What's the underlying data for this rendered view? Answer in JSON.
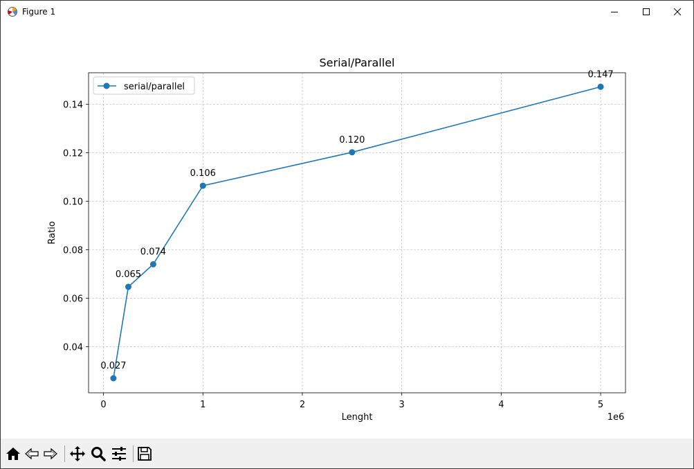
{
  "window": {
    "title": "Figure 1"
  },
  "colors": {
    "line": "#1f77b4",
    "grid": "#b0b0b0",
    "toolbar_bg": "#f0f0f0"
  },
  "toolbar": {
    "icons": [
      "home-icon",
      "back-arrow-icon",
      "forward-arrow-icon",
      "pan-icon",
      "zoom-icon",
      "configure-subplots-icon",
      "save-icon"
    ]
  },
  "chart_data": {
    "type": "line",
    "title": "Serial/Parallel",
    "xlabel": "Lenght",
    "ylabel": "Ratio",
    "x_offset_label": "1e6",
    "xlim": [
      -0.15,
      5.25
    ],
    "ylim": [
      0.021,
      0.153
    ],
    "x_ticks": [
      0,
      1,
      2,
      3,
      4,
      5
    ],
    "y_ticks": [
      0.04,
      0.06,
      0.08,
      0.1,
      0.12,
      0.14
    ],
    "x_tick_labels": [
      "0",
      "1",
      "2",
      "3",
      "4",
      "5"
    ],
    "y_tick_labels": [
      "0.04",
      "0.06",
      "0.08",
      "0.10",
      "0.12",
      "0.14"
    ],
    "grid": true,
    "legend_position": "upper-left",
    "series": [
      {
        "name": "serial/parallel",
        "marker": "circle",
        "x": [
          0.1,
          0.25,
          0.5,
          1.0,
          2.5,
          5.0
        ],
        "y": [
          0.027,
          0.0647,
          0.074,
          0.1064,
          0.1202,
          0.1472
        ],
        "labels": [
          "0.027",
          "0.065",
          "0.074",
          "0.106",
          "0.120",
          "0.147"
        ]
      }
    ]
  }
}
